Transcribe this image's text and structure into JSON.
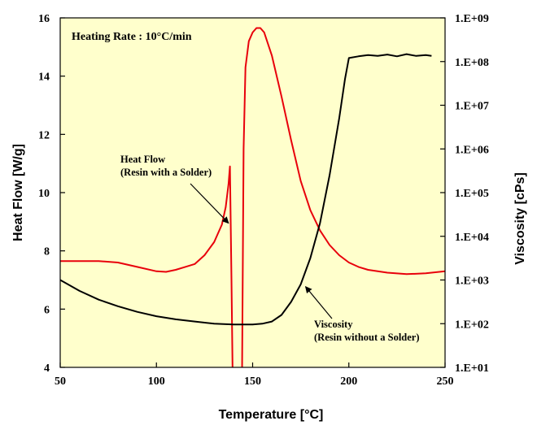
{
  "chart_data": {
    "type": "line",
    "title": "Heating Rate : 10°C/min",
    "xlabel": "Temperature [°C]",
    "ylabel_left": "Heat Flow [W/g]",
    "ylabel_right": "Viscosity [cPs]",
    "xlim": [
      50,
      250
    ],
    "ylim_left": [
      4,
      16
    ],
    "ylim_right_log10": [
      1,
      9
    ],
    "x_ticks": [
      50,
      100,
      150,
      200,
      250
    ],
    "x_tick_labels": [
      "50",
      "100",
      "150",
      "200",
      "250"
    ],
    "y_left_ticks": [
      4,
      6,
      8,
      10,
      12,
      14,
      16
    ],
    "y_left_tick_labels": [
      "4",
      "6",
      "8",
      "10",
      "12",
      "14",
      "16"
    ],
    "y_right_ticks_log10": [
      1,
      2,
      3,
      4,
      5,
      6,
      7,
      8,
      9
    ],
    "y_right_tick_labels": [
      "1.E+01",
      "1.E+02",
      "1.E+03",
      "1.E+04",
      "1.E+05",
      "1.E+06",
      "1.E+07",
      "1.E+08",
      "1.E+09"
    ],
    "background_color": "#FFFFCC",
    "series": [
      {
        "name": "Heat Flow (Resin with a Solder)",
        "axis": "left",
        "color": "#E8000B",
        "points": [
          [
            50,
            7.65
          ],
          [
            70,
            7.65
          ],
          [
            80,
            7.6
          ],
          [
            90,
            7.45
          ],
          [
            100,
            7.3
          ],
          [
            105,
            7.28
          ],
          [
            110,
            7.35
          ],
          [
            115,
            7.45
          ],
          [
            120,
            7.55
          ],
          [
            125,
            7.85
          ],
          [
            130,
            8.3
          ],
          [
            134,
            8.9
          ],
          [
            136,
            9.5
          ],
          [
            137.5,
            10.3
          ],
          [
            138.2,
            10.9
          ],
          [
            139,
            7.0
          ],
          [
            139.6,
            3.8
          ],
          [
            144.5,
            3.8
          ],
          [
            145.3,
            11.5
          ],
          [
            146.3,
            14.3
          ],
          [
            148,
            15.2
          ],
          [
            150,
            15.5
          ],
          [
            152,
            15.65
          ],
          [
            154,
            15.65
          ],
          [
            156,
            15.5
          ],
          [
            160,
            14.7
          ],
          [
            165,
            13.3
          ],
          [
            170,
            11.8
          ],
          [
            175,
            10.4
          ],
          [
            180,
            9.4
          ],
          [
            185,
            8.7
          ],
          [
            190,
            8.2
          ],
          [
            195,
            7.85
          ],
          [
            200,
            7.6
          ],
          [
            205,
            7.45
          ],
          [
            210,
            7.35
          ],
          [
            220,
            7.25
          ],
          [
            230,
            7.2
          ],
          [
            240,
            7.23
          ],
          [
            250,
            7.3
          ]
        ]
      },
      {
        "name": "Viscosity (Resin without a Solder)",
        "axis": "right_log10",
        "color": "#000000",
        "points": [
          [
            50,
            3.0
          ],
          [
            60,
            2.75
          ],
          [
            70,
            2.55
          ],
          [
            80,
            2.4
          ],
          [
            90,
            2.27
          ],
          [
            100,
            2.17
          ],
          [
            110,
            2.1
          ],
          [
            120,
            2.05
          ],
          [
            130,
            2.0
          ],
          [
            140,
            1.98
          ],
          [
            150,
            1.98
          ],
          [
            155,
            2.0
          ],
          [
            160,
            2.05
          ],
          [
            165,
            2.2
          ],
          [
            170,
            2.5
          ],
          [
            175,
            2.9
          ],
          [
            180,
            3.5
          ],
          [
            185,
            4.3
          ],
          [
            190,
            5.4
          ],
          [
            195,
            6.7
          ],
          [
            198,
            7.6
          ],
          [
            200,
            8.08
          ],
          [
            205,
            8.12
          ],
          [
            210,
            8.15
          ],
          [
            215,
            8.13
          ],
          [
            220,
            8.16
          ],
          [
            225,
            8.12
          ],
          [
            230,
            8.17
          ],
          [
            235,
            8.13
          ],
          [
            240,
            8.15
          ],
          [
            243,
            8.13
          ]
        ]
      }
    ],
    "annotations": [
      {
        "label_lines": [
          "Heat Flow",
          "(Resin with a Solder)"
        ],
        "points_to": "Heat Flow (Resin with a Solder)",
        "arrow_tip": [
          137.5,
          8.95
        ]
      },
      {
        "label_lines": [
          "Viscosity",
          "(Resin without a Solder)"
        ],
        "points_to": "Viscosity (Resin without a Solder)",
        "arrow_tip": [
          177.5,
          2.85
        ]
      }
    ]
  }
}
